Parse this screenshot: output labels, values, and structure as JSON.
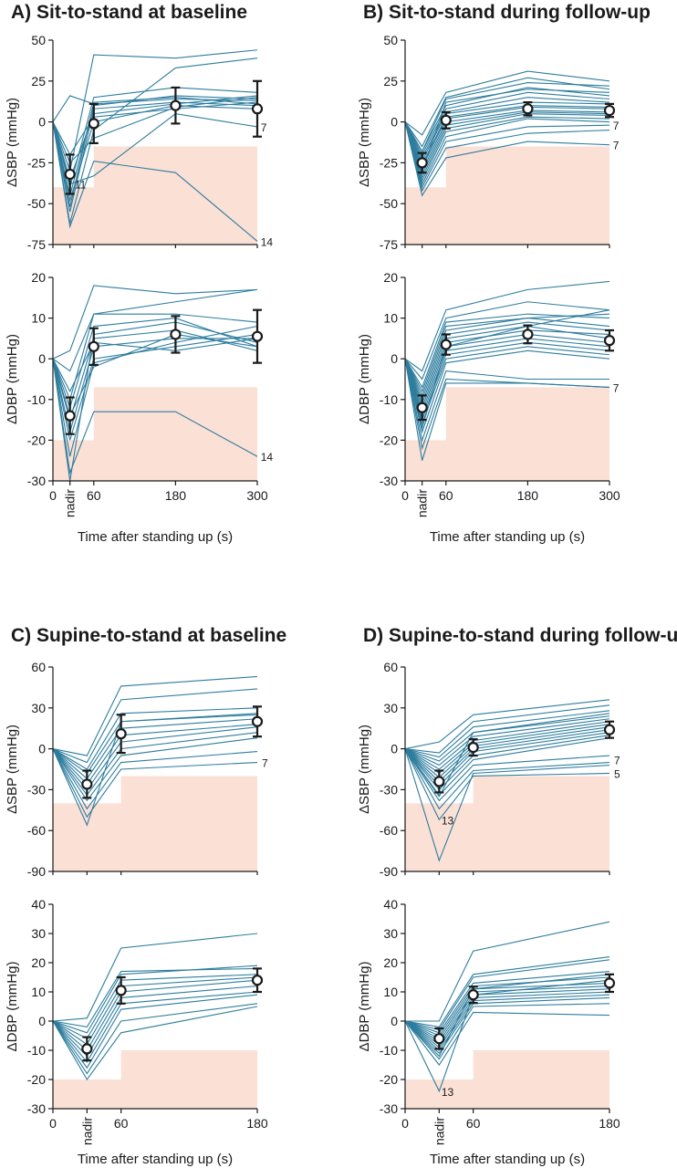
{
  "panels": [
    {
      "id": "A",
      "title": "A) Sit-to-stand at baseline",
      "xlabel": "Time after standing up (s)",
      "x_ticks": [
        {
          "label": "0",
          "x": 0
        },
        {
          "label": "nadir",
          "x": 25,
          "rotated": true
        },
        {
          "label": "60",
          "x": 60
        },
        {
          "label": "180",
          "x": 180
        },
        {
          "label": "300",
          "x": 300
        }
      ],
      "xlim": [
        0,
        300
      ]
    },
    {
      "id": "B",
      "title": "B) Sit-to-stand during follow-up",
      "xlabel": "Time after standing up (s)",
      "x_ticks": [
        {
          "label": "0",
          "x": 0
        },
        {
          "label": "nadir",
          "x": 25,
          "rotated": true
        },
        {
          "label": "60",
          "x": 60
        },
        {
          "label": "180",
          "x": 180
        },
        {
          "label": "300",
          "x": 300
        }
      ],
      "xlim": [
        0,
        300
      ]
    },
    {
      "id": "C",
      "title": "C) Supine-to-stand at baseline",
      "xlabel": "Time after standing up (s)",
      "x_ticks": [
        {
          "label": "0",
          "x": 0
        },
        {
          "label": "nadir",
          "x": 30,
          "rotated": true
        },
        {
          "label": "60",
          "x": 60
        },
        {
          "label": "180",
          "x": 180
        }
      ],
      "xlim": [
        0,
        180
      ]
    },
    {
      "id": "D",
      "title": "D) Supine-to-stand during follow-up",
      "xlabel": "Time after standing up (s)",
      "x_ticks": [
        {
          "label": "0",
          "x": 0
        },
        {
          "label": "nadir",
          "x": 30,
          "rotated": true
        },
        {
          "label": "60",
          "x": 60
        },
        {
          "label": "180",
          "x": 180
        }
      ],
      "xlim": [
        0,
        180
      ]
    }
  ],
  "colors": {
    "line": "#2e7d9e",
    "shade": "#fbe0d6",
    "mean": "#1a1a1a"
  },
  "chart_data": [
    {
      "panel": "A",
      "type": "line",
      "ylabel": "ΔSBP (mmHg)",
      "ylim": [
        -75,
        50
      ],
      "yticks": [
        50,
        25,
        0,
        -25,
        -50,
        -75
      ],
      "threshold_steps": [
        [
          0,
          60,
          -40
        ],
        [
          60,
          300,
          -15
        ]
      ],
      "x": [
        0,
        25,
        60,
        180,
        300
      ],
      "series": [
        [
          0,
          16,
          11,
          14,
          13
        ],
        [
          0,
          -30,
          41,
          39,
          44
        ],
        [
          0,
          -40,
          15,
          21,
          18
        ],
        [
          0,
          -45,
          10,
          16,
          14
        ],
        [
          0,
          -55,
          8,
          12,
          10
        ],
        [
          0,
          -35,
          5,
          11,
          16
        ],
        [
          0,
          -48,
          0,
          10,
          8
        ],
        [
          0,
          -62,
          -5,
          33,
          39
        ],
        [
          0,
          -25,
          -10,
          9,
          15
        ],
        [
          0,
          -64,
          -24,
          -31,
          -73
        ],
        [
          0,
          -38,
          -33,
          5,
          -3
        ],
        [
          0,
          -52,
          12,
          15,
          11
        ],
        [
          0,
          -20,
          3,
          8,
          12
        ]
      ],
      "mean": [
        null,
        -32,
        -1,
        10,
        8
      ],
      "error": [
        null,
        12,
        12,
        11,
        17
      ],
      "annotations": [
        {
          "text": "11",
          "x": 32,
          "y": -38
        },
        {
          "text": "7",
          "x": 305,
          "y": -3
        },
        {
          "text": "14",
          "x": 305,
          "y": -73
        }
      ]
    },
    {
      "panel": "A",
      "type": "line",
      "ylabel": "ΔDBP (mmHg)",
      "ylim": [
        -30,
        20
      ],
      "yticks": [
        20,
        10,
        0,
        -10,
        -20,
        -30
      ],
      "threshold_steps": [
        [
          0,
          60,
          -20
        ],
        [
          60,
          300,
          -7
        ]
      ],
      "x": [
        0,
        25,
        60,
        180,
        300
      ],
      "series": [
        [
          0,
          2,
          18,
          16,
          17
        ],
        [
          0,
          -3,
          11,
          14,
          17
        ],
        [
          0,
          -10,
          11,
          11,
          9
        ],
        [
          0,
          -12,
          8,
          10,
          3
        ],
        [
          0,
          -15,
          5,
          7,
          2
        ],
        [
          0,
          -18,
          3,
          5,
          5
        ],
        [
          0,
          -20,
          0,
          3,
          6
        ],
        [
          0,
          -24,
          -1,
          4,
          8
        ],
        [
          0,
          -28,
          -13,
          -13,
          -24
        ],
        [
          0,
          -30,
          6,
          9,
          4
        ],
        [
          0,
          -8,
          4,
          2,
          5
        ],
        [
          0,
          -14,
          -2,
          6,
          3
        ]
      ],
      "mean": [
        null,
        -14,
        3,
        6,
        5.5
      ],
      "error": [
        null,
        4.5,
        4.5,
        4.5,
        6.5
      ],
      "annotations": [
        {
          "text": "14",
          "x": 305,
          "y": -24
        }
      ]
    },
    {
      "panel": "B",
      "type": "line",
      "ylabel": "ΔSBP (mmHg)",
      "ylim": [
        -75,
        50
      ],
      "yticks": [
        50,
        25,
        0,
        -25,
        -50,
        -75
      ],
      "threshold_steps": [
        [
          0,
          60,
          -40
        ],
        [
          60,
          300,
          -15
        ]
      ],
      "x": [
        0,
        25,
        60,
        180,
        300
      ],
      "series": [
        [
          0,
          -8,
          18,
          31,
          25
        ],
        [
          0,
          -15,
          15,
          27,
          20
        ],
        [
          0,
          -18,
          10,
          21,
          16
        ],
        [
          0,
          -20,
          8,
          18,
          14
        ],
        [
          0,
          -22,
          6,
          15,
          12
        ],
        [
          0,
          -24,
          5,
          12,
          11
        ],
        [
          0,
          -26,
          3,
          10,
          9
        ],
        [
          0,
          -28,
          2,
          9,
          8
        ],
        [
          0,
          -30,
          0,
          7,
          6
        ],
        [
          0,
          -32,
          -2,
          6,
          5
        ],
        [
          0,
          -34,
          -4,
          5,
          4
        ],
        [
          0,
          -36,
          -6,
          3,
          2
        ],
        [
          0,
          -38,
          -9,
          2,
          0
        ],
        [
          0,
          -40,
          -12,
          -3,
          -2
        ],
        [
          0,
          -42,
          -16,
          -7,
          -5
        ],
        [
          0,
          -45,
          -22,
          -12,
          -14
        ],
        [
          0,
          -30,
          12,
          20,
          18
        ],
        [
          0,
          -18,
          14,
          24,
          22
        ]
      ],
      "mean": [
        null,
        -25,
        1,
        8,
        7
      ],
      "error": [
        null,
        6,
        5,
        4,
        4
      ],
      "annotations": [
        {
          "text": "7",
          "x": 305,
          "y": -2
        },
        {
          "text": "7",
          "x": 305,
          "y": -14
        }
      ]
    },
    {
      "panel": "B",
      "type": "line",
      "ylabel": "ΔDBP (mmHg)",
      "ylim": [
        -30,
        20
      ],
      "yticks": [
        20,
        10,
        0,
        -10,
        -20,
        -30
      ],
      "threshold_steps": [
        [
          0,
          60,
          -20
        ],
        [
          60,
          300,
          -7
        ]
      ],
      "x": [
        0,
        25,
        60,
        180,
        300
      ],
      "series": [
        [
          0,
          -3,
          12,
          17,
          19
        ],
        [
          0,
          -5,
          10,
          14,
          12
        ],
        [
          0,
          -7,
          9,
          11,
          10
        ],
        [
          0,
          -8,
          8,
          10,
          11
        ],
        [
          0,
          -9,
          7,
          10,
          8
        ],
        [
          0,
          -10,
          6,
          9,
          7
        ],
        [
          0,
          -11,
          5,
          8,
          5
        ],
        [
          0,
          -12,
          4,
          7,
          6
        ],
        [
          0,
          -13,
          3,
          6,
          4
        ],
        [
          0,
          -14,
          2,
          5,
          3
        ],
        [
          0,
          -15,
          1,
          4,
          2
        ],
        [
          0,
          -16,
          0,
          3,
          1
        ],
        [
          0,
          -18,
          -1,
          2,
          0
        ],
        [
          0,
          -20,
          -3,
          -5,
          -5
        ],
        [
          0,
          -22,
          -5,
          -6,
          -7
        ],
        [
          0,
          -25,
          -6,
          -6,
          -7
        ],
        [
          0,
          -17,
          3,
          8,
          12
        ]
      ],
      "mean": [
        null,
        -12,
        3.5,
        6,
        4.5
      ],
      "error": [
        null,
        3,
        2.5,
        2.2,
        2.5
      ],
      "annotations": [
        {
          "text": "7",
          "x": 305,
          "y": -7
        }
      ]
    },
    {
      "panel": "C",
      "type": "line",
      "ylabel": "ΔSBP (mmHg)",
      "ylim": [
        -90,
        60
      ],
      "yticks": [
        60,
        30,
        0,
        -30,
        -60,
        -90
      ],
      "threshold_steps": [
        [
          0,
          60,
          -40
        ],
        [
          60,
          180,
          -20
        ]
      ],
      "x": [
        0,
        30,
        60,
        180
      ],
      "series": [
        [
          0,
          -5,
          46,
          53
        ],
        [
          0,
          -10,
          36,
          44
        ],
        [
          0,
          -15,
          26,
          30
        ],
        [
          0,
          -18,
          20,
          26
        ],
        [
          0,
          -22,
          15,
          22
        ],
        [
          0,
          -26,
          10,
          18
        ],
        [
          0,
          -30,
          5,
          16
        ],
        [
          0,
          -34,
          0,
          12
        ],
        [
          0,
          -38,
          -5,
          8
        ],
        [
          0,
          -44,
          -10,
          -2
        ],
        [
          0,
          -50,
          -15,
          -10
        ],
        [
          0,
          -56,
          20,
          25
        ]
      ],
      "mean": [
        null,
        -26,
        11,
        20
      ],
      "error": [
        null,
        10,
        14,
        11
      ],
      "annotations": [
        {
          "text": "7",
          "x": 184,
          "y": -10
        }
      ]
    },
    {
      "panel": "C",
      "type": "line",
      "ylabel": "ΔDBP (mmHg)",
      "ylim": [
        -30,
        40
      ],
      "yticks": [
        40,
        30,
        20,
        10,
        0,
        -10,
        -20,
        -30
      ],
      "threshold_steps": [
        [
          0,
          60,
          -20
        ],
        [
          60,
          180,
          -10
        ]
      ],
      "x": [
        0,
        30,
        60,
        180
      ],
      "series": [
        [
          0,
          1,
          25,
          30
        ],
        [
          0,
          -2,
          17,
          18
        ],
        [
          0,
          -4,
          16,
          19
        ],
        [
          0,
          -6,
          14,
          16
        ],
        [
          0,
          -8,
          12,
          15
        ],
        [
          0,
          -10,
          10,
          14
        ],
        [
          0,
          -12,
          8,
          12
        ],
        [
          0,
          -14,
          6,
          10
        ],
        [
          0,
          -16,
          4,
          9
        ],
        [
          0,
          -18,
          0,
          6
        ],
        [
          0,
          -20,
          -4,
          5
        ]
      ],
      "mean": [
        null,
        -9.5,
        10.5,
        14
      ],
      "error": [
        null,
        4,
        4.5,
        4
      ],
      "annotations": []
    },
    {
      "panel": "D",
      "type": "line",
      "ylabel": "ΔSBP (mmHg)",
      "ylim": [
        -90,
        60
      ],
      "yticks": [
        60,
        30,
        0,
        -30,
        -60,
        -90
      ],
      "threshold_steps": [
        [
          0,
          60,
          -40
        ],
        [
          60,
          180,
          -20
        ]
      ],
      "x": [
        0,
        30,
        60,
        180
      ],
      "series": [
        [
          0,
          5,
          25,
          36
        ],
        [
          0,
          -3,
          20,
          32
        ],
        [
          0,
          -6,
          16,
          28
        ],
        [
          0,
          -9,
          12,
          26
        ],
        [
          0,
          -12,
          9,
          22
        ],
        [
          0,
          -15,
          6,
          20
        ],
        [
          0,
          -18,
          4,
          18
        ],
        [
          0,
          -21,
          2,
          16
        ],
        [
          0,
          -24,
          0,
          14
        ],
        [
          0,
          -27,
          -2,
          12
        ],
        [
          0,
          -30,
          -5,
          10
        ],
        [
          0,
          -34,
          -8,
          8
        ],
        [
          0,
          -38,
          -12,
          -5
        ],
        [
          0,
          -44,
          -16,
          -10
        ],
        [
          0,
          -52,
          -20,
          -18
        ],
        [
          0,
          -82,
          -18,
          -12
        ],
        [
          0,
          -35,
          12,
          24
        ]
      ],
      "mean": [
        null,
        -24,
        1,
        14
      ],
      "error": [
        null,
        8,
        6,
        6
      ],
      "annotations": [
        {
          "text": "13",
          "x": 32,
          "y": -52
        },
        {
          "text": "7",
          "x": 184,
          "y": -8
        },
        {
          "text": "5",
          "x": 184,
          "y": -18
        }
      ]
    },
    {
      "panel": "D",
      "type": "line",
      "ylabel": "ΔDBP (mmHg)",
      "ylim": [
        -30,
        40
      ],
      "yticks": [
        40,
        30,
        20,
        10,
        0,
        -10,
        -20,
        -30
      ],
      "threshold_steps": [
        [
          0,
          60,
          -20
        ],
        [
          60,
          180,
          -10
        ]
      ],
      "x": [
        0,
        30,
        60,
        180
      ],
      "series": [
        [
          0,
          0,
          24,
          34
        ],
        [
          0,
          -2,
          16,
          22
        ],
        [
          0,
          -3,
          15,
          21
        ],
        [
          0,
          -4,
          13,
          17
        ],
        [
          0,
          -5,
          12,
          15
        ],
        [
          0,
          -6,
          11,
          13
        ],
        [
          0,
          -7,
          10,
          12
        ],
        [
          0,
          -8,
          9,
          11
        ],
        [
          0,
          -9,
          8,
          10
        ],
        [
          0,
          -10,
          7,
          9
        ],
        [
          0,
          -11,
          6,
          8
        ],
        [
          0,
          -13,
          5,
          6
        ],
        [
          0,
          -15,
          3,
          2
        ],
        [
          0,
          -24,
          9,
          14
        ],
        [
          0,
          -12,
          11,
          16
        ]
      ],
      "mean": [
        null,
        -6,
        9,
        13
      ],
      "error": [
        null,
        3.5,
        2.8,
        3
      ],
      "annotations": [
        {
          "text": "13",
          "x": 32,
          "y": -24
        }
      ]
    }
  ]
}
